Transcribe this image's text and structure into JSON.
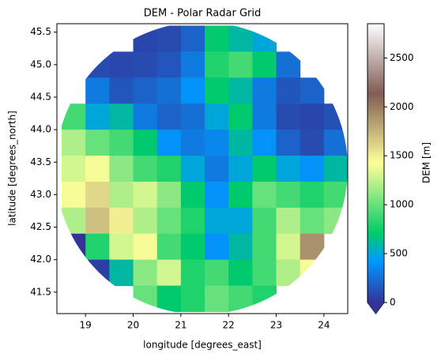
{
  "chart_data": {
    "type": "heatmap",
    "title": "DEM - Polar Radar Grid",
    "x_label": "longitude [degrees_east]",
    "y_label": "latitude [degrees_north]",
    "x": [
      18.75,
      19.25,
      19.75,
      20.25,
      20.75,
      21.25,
      21.75,
      22.25,
      22.75,
      23.25,
      23.75,
      24.25
    ],
    "y": [
      45.4,
      45.0,
      44.6,
      44.2,
      43.8,
      43.4,
      43.0,
      42.6,
      42.2,
      41.8,
      41.4
    ],
    "z": [
      [
        null,
        null,
        null,
        80,
        100,
        200,
        700,
        600,
        500,
        null,
        null,
        null
      ],
      [
        null,
        100,
        90,
        100,
        150,
        300,
        800,
        900,
        700,
        250,
        null,
        null
      ],
      [
        null,
        300,
        150,
        200,
        250,
        400,
        700,
        600,
        300,
        150,
        200,
        null
      ],
      [
        900,
        500,
        600,
        300,
        200,
        250,
        500,
        700,
        300,
        100,
        80,
        120
      ],
      [
        1200,
        1000,
        900,
        700,
        400,
        300,
        350,
        600,
        400,
        200,
        100,
        250
      ],
      [
        1300,
        1400,
        1100,
        900,
        800,
        500,
        300,
        500,
        700,
        500,
        400,
        600
      ],
      [
        1400,
        1600,
        1200,
        1300,
        1100,
        700,
        400,
        700,
        1000,
        900,
        800,
        900
      ],
      [
        1200,
        1700,
        1500,
        1200,
        1000,
        800,
        500,
        500,
        900,
        1200,
        1000,
        1100
      ],
      [
        0,
        800,
        1300,
        1400,
        900,
        700,
        400,
        600,
        900,
        1300,
        1900,
        null
      ],
      [
        null,
        50,
        600,
        1100,
        1300,
        800,
        900,
        700,
        900,
        1200,
        1400,
        null
      ],
      [
        null,
        null,
        null,
        1000,
        700,
        800,
        1000,
        900,
        800,
        null,
        null,
        null
      ]
    ],
    "xlim": [
      18.4,
      24.5
    ],
    "xticks": [
      19,
      20,
      21,
      22,
      23,
      24
    ],
    "ylim": [
      41.17,
      45.63
    ],
    "yticks": [
      {
        "value": 41.5,
        "label": "41.5"
      },
      {
        "value": 42,
        "label": "42.0"
      },
      42.5,
      {
        "value": 43,
        "label": "43.0"
      },
      43.5,
      {
        "value": 44,
        "label": "44.0"
      },
      44.5,
      {
        "value": 45,
        "label": "45.0"
      },
      45.5
    ],
    "colormap": "terrain",
    "colorbar": {
      "label": "DEM [m]",
      "lim": [
        0,
        2850
      ],
      "ticks": [
        0,
        500,
        1000,
        1500,
        2000,
        2500
      ],
      "extend": "min"
    }
  }
}
